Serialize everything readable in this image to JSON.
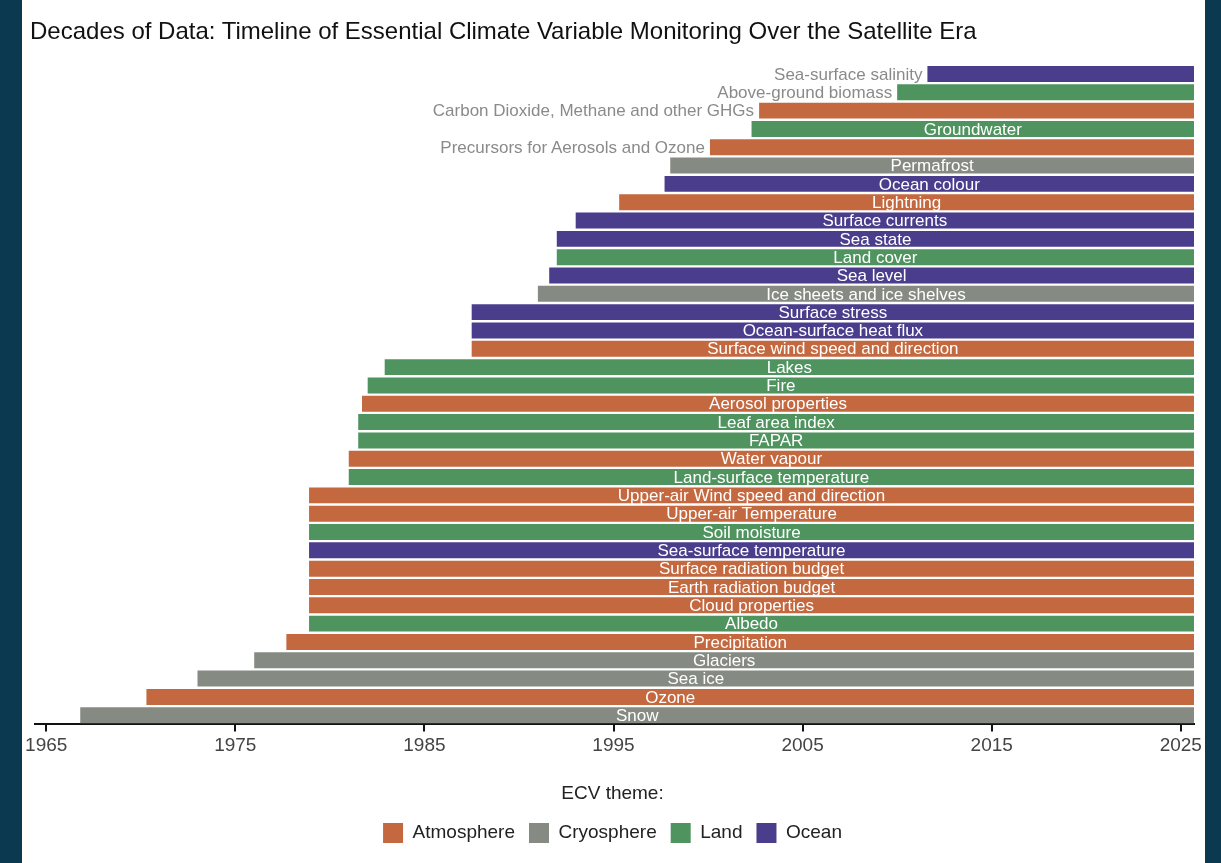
{
  "chart_data": {
    "type": "bar",
    "orientation": "horizontal",
    "title": "Decades of Data: Timeline of Essential Climate Variable Monitoring Over the Satellite Era",
    "categories": [
      "Sea-surface salinity",
      "Above-ground biomass",
      "Carbon Dioxide, Methane and other GHGs",
      "Groundwater",
      "Precursors for Aerosols and Ozone",
      "Permafrost",
      "Ocean colour",
      "Lightning",
      "Surface currents",
      "Sea state",
      "Land cover",
      "Sea level",
      "Ice sheets and ice shelves",
      "Surface stress",
      "Ocean-surface heat flux",
      "Surface wind speed and direction",
      "Lakes",
      "Fire",
      "Aerosol properties",
      "Leaf area index",
      "FAPAR",
      "Water vapour",
      "Land-surface temperature",
      "Upper-air Wind speed and direction",
      "Upper-air Temperature",
      "Soil moisture",
      "Sea-surface temperature",
      "Surface radiation budget",
      "Earth radiation budget",
      "Cloud properties",
      "Albedo",
      "Precipitation",
      "Glaciers",
      "Sea ice",
      "Ozone",
      "Snow"
    ],
    "series": [
      {
        "name": "Atmosphere",
        "color": "#c4683f",
        "values": [
          null,
          null,
          23.0,
          null,
          25.6,
          null,
          null,
          30.4,
          null,
          null,
          null,
          null,
          null,
          null,
          null,
          38.2,
          null,
          null,
          44.0,
          null,
          null,
          44.7,
          null,
          46.8,
          46.8,
          null,
          null,
          46.8,
          46.8,
          46.8,
          null,
          48.0,
          null,
          null,
          55.4,
          null
        ],
        "base": [
          null,
          null,
          2002.7,
          null,
          2000.1,
          null,
          null,
          1995.3,
          null,
          null,
          null,
          null,
          null,
          null,
          null,
          1987.5,
          null,
          null,
          1981.7,
          null,
          null,
          1981.0,
          null,
          1978.9,
          1978.9,
          null,
          null,
          1978.9,
          1978.9,
          1978.9,
          null,
          1977.7,
          null,
          null,
          1970.3,
          null
        ]
      },
      {
        "name": "Cryosphere",
        "color": "#858b82",
        "values": [
          null,
          null,
          null,
          null,
          null,
          27.7,
          null,
          null,
          null,
          null,
          null,
          null,
          34.7,
          null,
          null,
          null,
          null,
          null,
          null,
          null,
          null,
          null,
          null,
          null,
          null,
          null,
          null,
          null,
          null,
          null,
          null,
          null,
          49.7,
          52.7,
          null,
          58.9
        ],
        "base": [
          null,
          null,
          null,
          null,
          null,
          1998.0,
          null,
          null,
          null,
          null,
          null,
          null,
          1991.0,
          null,
          null,
          null,
          null,
          null,
          null,
          null,
          null,
          null,
          null,
          null,
          null,
          null,
          null,
          null,
          null,
          null,
          null,
          null,
          1976.0,
          1973.0,
          null,
          1966.8
        ]
      },
      {
        "name": "Land",
        "color": "#4f945f",
        "values": [
          null,
          15.7,
          null,
          23.4,
          null,
          null,
          null,
          null,
          null,
          null,
          33.7,
          null,
          null,
          null,
          null,
          null,
          42.8,
          43.7,
          null,
          44.2,
          44.2,
          null,
          44.7,
          null,
          null,
          46.8,
          null,
          null,
          null,
          null,
          46.8,
          null,
          null,
          null,
          null,
          null
        ],
        "base": [
          null,
          2010.0,
          null,
          2002.3,
          null,
          null,
          null,
          null,
          null,
          null,
          1992.0,
          null,
          null,
          null,
          null,
          null,
          1982.9,
          1982.0,
          null,
          1981.5,
          1981.5,
          null,
          1981.0,
          null,
          null,
          1978.9,
          null,
          null,
          null,
          null,
          1978.9,
          null,
          null,
          null,
          null,
          null
        ]
      },
      {
        "name": "Ocean",
        "color": "#4a3d8c",
        "values": [
          14.1,
          null,
          null,
          null,
          null,
          null,
          28.0,
          null,
          32.7,
          33.7,
          null,
          34.1,
          null,
          38.2,
          38.2,
          null,
          null,
          null,
          null,
          null,
          null,
          null,
          null,
          null,
          null,
          null,
          46.8,
          null,
          null,
          null,
          null,
          null,
          null,
          null,
          null,
          null
        ],
        "base": [
          2011.6,
          null,
          null,
          null,
          null,
          null,
          1997.7,
          null,
          1993.0,
          1992.0,
          null,
          1991.6,
          null,
          1987.5,
          1987.5,
          null,
          null,
          null,
          null,
          null,
          null,
          null,
          null,
          null,
          null,
          null,
          1978.9,
          null,
          null,
          null,
          null,
          null,
          null,
          null,
          null,
          null
        ]
      }
    ],
    "xlim": [
      1964.4,
      2025.7
    ],
    "xticks": [
      1965,
      1975,
      1985,
      1995,
      2005,
      2015,
      2025
    ],
    "legend": "bottom",
    "legend_title": "ECV theme:",
    "tick_labels": "x"
  }
}
